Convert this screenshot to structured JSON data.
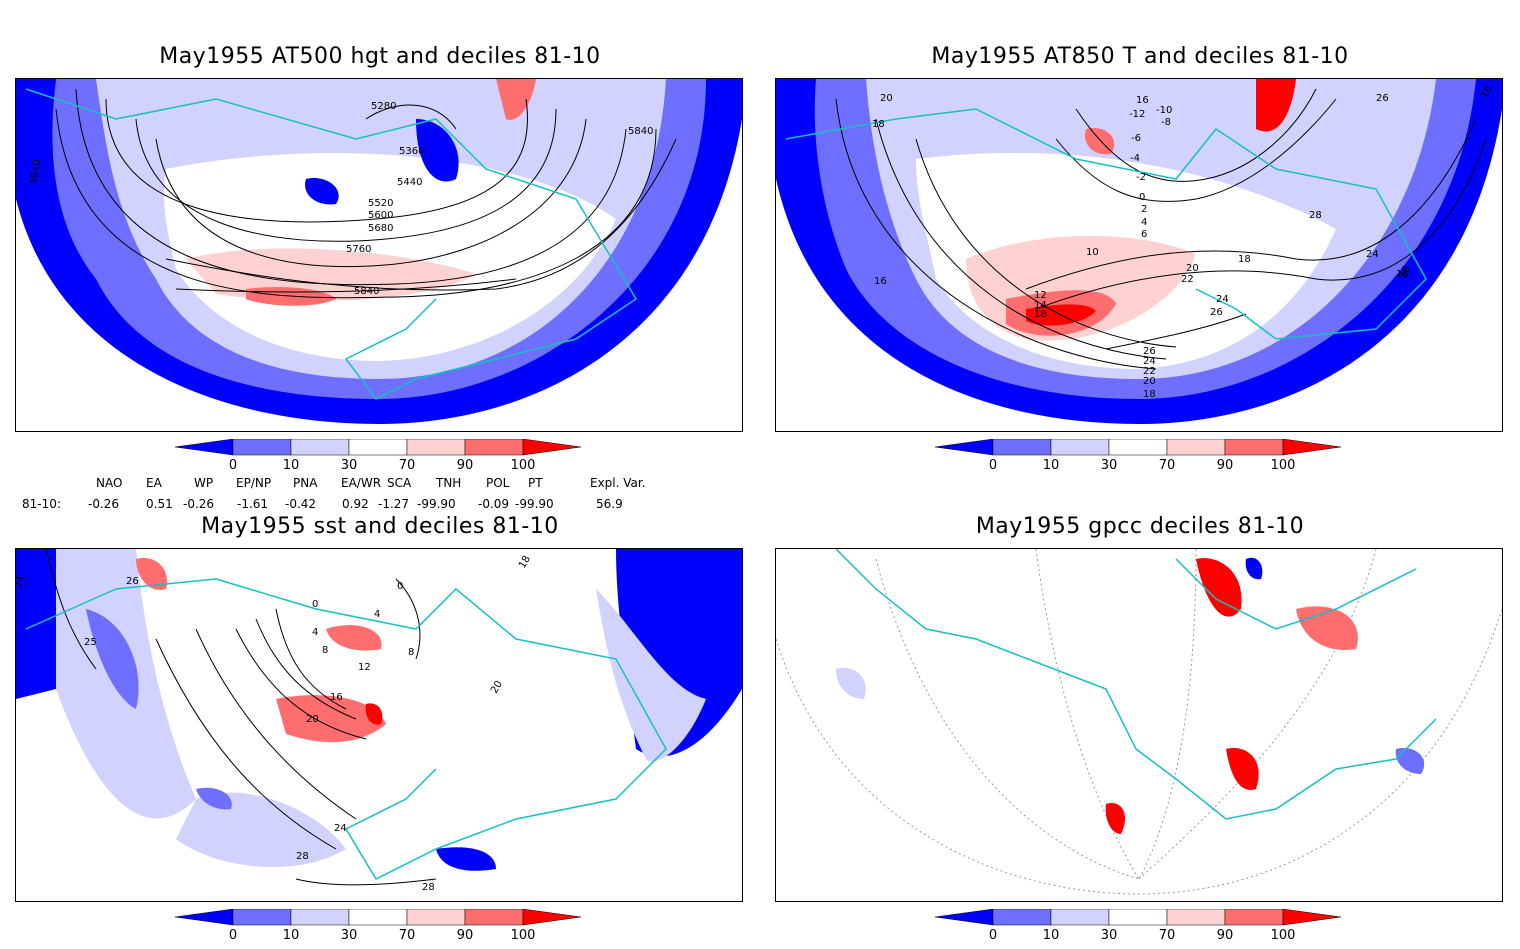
{
  "panels": [
    {
      "title": "May1955 AT500 hgt and deciles 81-10",
      "contour_labels": [
        "5280",
        "5360",
        "5440",
        "5520",
        "5600",
        "5680",
        "5760",
        "5840",
        "5840",
        "5840"
      ]
    },
    {
      "title": "May1955 AT850 T and deciles 81-10",
      "contour_labels": [
        "20",
        "18",
        "16",
        "-12",
        "-10",
        "-8",
        "-6",
        "-4",
        "-2",
        "0",
        "2",
        "4",
        "6",
        "10",
        "12",
        "14",
        "18",
        "20",
        "22",
        "24",
        "26",
        "24",
        "22",
        "20",
        "18",
        "16",
        "18",
        "26",
        "28",
        "24",
        "16",
        "18",
        "26",
        "16"
      ]
    },
    {
      "title": "May1955 sst and deciles 81-10",
      "contour_labels": [
        "24",
        "26",
        "25",
        "0",
        "4",
        "8",
        "12",
        "16",
        "20",
        "24",
        "28",
        "28",
        "4",
        "8",
        "0",
        "18",
        "20"
      ]
    },
    {
      "title": "May1955 gpcc deciles 81-10",
      "contour_labels": []
    }
  ],
  "colorbar": {
    "ticks": [
      "0",
      "10",
      "30",
      "70",
      "90",
      "100"
    ],
    "colors": [
      "#0000ff",
      "#6e6eff",
      "#d2d2ff",
      "#ffffff",
      "#ffd2d2",
      "#ff6e6e",
      "#ff0000"
    ]
  },
  "indices": {
    "headers": [
      "NAO",
      "EA",
      "WP",
      "EP/NP",
      "PNA",
      "EA/WR",
      "SCA",
      "TNH",
      "POL",
      "PT",
      "Expl. Var."
    ],
    "row_label": "81-10:",
    "values": [
      "-0.26",
      "0.51",
      "-0.26",
      "-1.61",
      "-0.42",
      "0.92",
      "-1.27",
      "-99.90",
      "-0.09",
      "-99.90",
      "56.9"
    ]
  }
}
